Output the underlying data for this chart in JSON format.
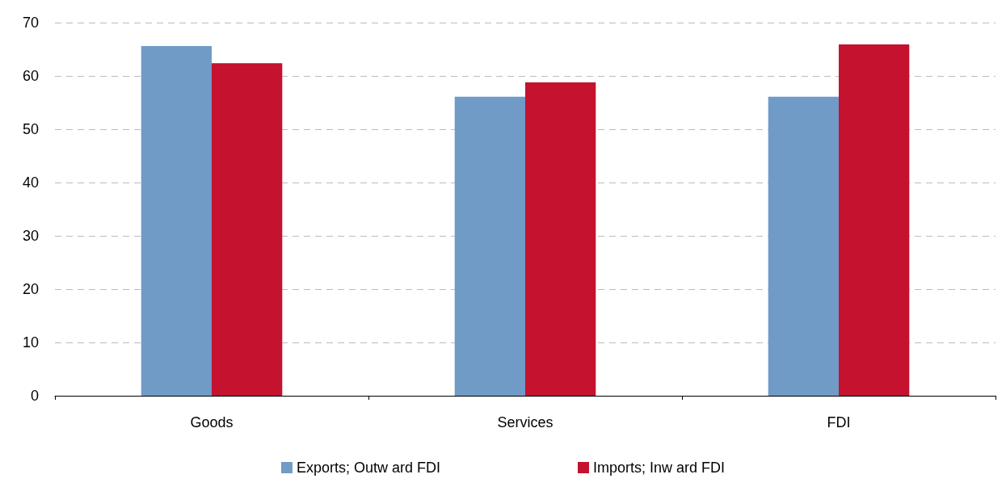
{
  "chart_data": {
    "type": "bar",
    "categories": [
      "Goods",
      "Services",
      "FDI"
    ],
    "series": [
      {
        "name": "Exports; Outw ard FDI",
        "color": "#709bc7",
        "values": [
          65.6,
          56.1,
          56.1
        ]
      },
      {
        "name": "Imports; Inw ard FDI",
        "color": "#c4122f",
        "values": [
          62.4,
          58.8,
          65.9
        ]
      }
    ],
    "ylim": [
      0,
      70
    ],
    "yticks": [
      0,
      10,
      20,
      30,
      40,
      50,
      60,
      70
    ],
    "grid": "y",
    "legend": "bottom"
  }
}
